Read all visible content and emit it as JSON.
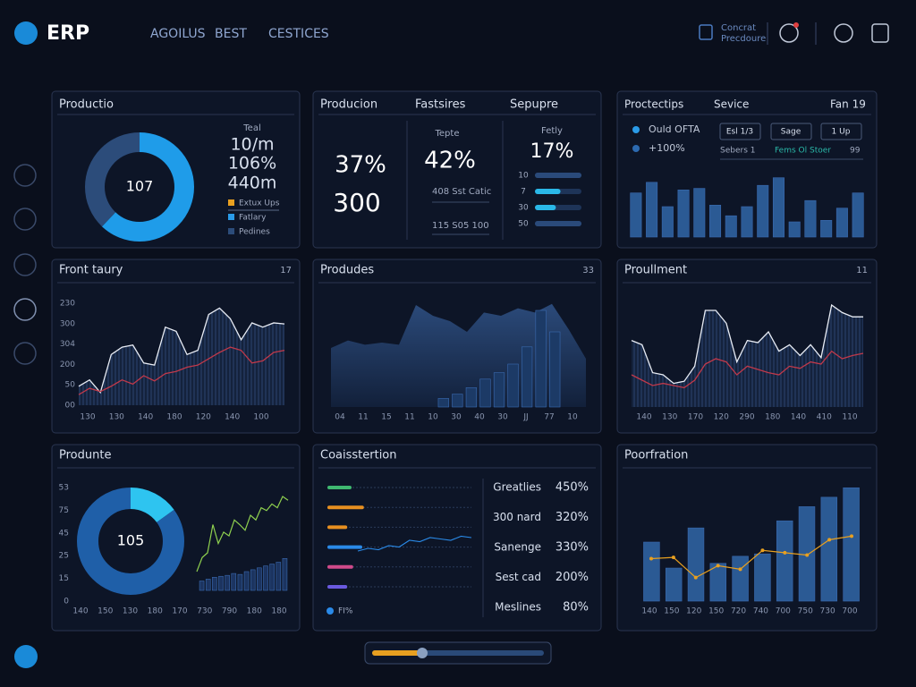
{
  "header": {
    "logo": "ERP",
    "nav": [
      "AGOILUS",
      "BEST",
      "CESTICES"
    ],
    "user": [
      "Concrat",
      "Precdoure"
    ]
  },
  "panels": [
    {
      "title": "Productio",
      "chart": {
        "type": "donut",
        "center": "107",
        "values": [
          62,
          38
        ],
        "colors": [
          "#1f9ce9",
          "#2c4c7a"
        ]
      },
      "stats_label": "Teal",
      "stats": [
        "10/m",
        "106%",
        "440m"
      ],
      "legend": [
        {
          "name": "Extux Ups",
          "color": "#e8a020"
        },
        {
          "name": "Fatlary",
          "color": "#2a9be8"
        },
        {
          "name": "Pedines",
          "color": "#2c4c7a"
        }
      ]
    },
    {
      "titles": [
        "Producion",
        "Fastsires",
        "Sepupre"
      ],
      "kpis": [
        "37%",
        "300"
      ],
      "mid": {
        "label": "Tepte",
        "value": "42%",
        "lines": [
          "408 Sst Catic",
          "115 S05 100"
        ]
      },
      "right": {
        "label": "Fetly",
        "value": "17%",
        "progress": {
          "labels": [
            "10",
            "7",
            "30",
            "50"
          ],
          "values": [
            100,
            55,
            45,
            100
          ],
          "xlim": [
            0,
            100
          ],
          "color": "#2ab8e8"
        }
      }
    },
    {
      "titles": [
        "Proctectips",
        "Sevice",
        "Fan 19"
      ],
      "legend": [
        {
          "name": "Ould OFTA",
          "color": "#2a9be8"
        },
        {
          "name": "+100%",
          "color": "#2c6ab0"
        }
      ],
      "buttons": [
        "Esl 1/3",
        "Sage",
        "1 Up"
      ],
      "row": [
        "Sebers 1",
        "Fems Ol Stoer",
        "99"
      ],
      "chart": {
        "type": "bar",
        "values": [
          58,
          72,
          40,
          62,
          64,
          42,
          28,
          40,
          68,
          78,
          20,
          48,
          22,
          38,
          58
        ],
        "ylim": [
          0,
          100
        ],
        "color": "#2b5a94"
      }
    },
    {
      "title": "Front taury",
      "badge": "17",
      "chart": {
        "type": "line",
        "y_labels": [
          "230",
          "300",
          "304",
          "200",
          "50",
          "00"
        ],
        "x_labels": [
          "130",
          "130",
          "140",
          "180",
          "120",
          "140",
          "100"
        ],
        "ylim": [
          0,
          100
        ],
        "series": [
          {
            "color": "#e8ecf4",
            "values": [
              18,
              24,
              12,
              48,
              55,
              57,
              40,
              38,
              74,
              70,
              48,
              52,
              86,
              92,
              82,
              62,
              78,
              74,
              78,
              77
            ]
          },
          {
            "color": "#c0394a",
            "values": [
              10,
              16,
              13,
              18,
              24,
              20,
              28,
              23,
              30,
              32,
              36,
              38,
              44,
              50,
              55,
              52,
              40,
              42,
              50,
              52
            ]
          }
        ]
      }
    },
    {
      "title": "Produdes",
      "badge": "33",
      "chart": {
        "type": "area",
        "x_labels": [
          "04",
          "11",
          "15",
          "11",
          "10",
          "30",
          "40",
          "30",
          "JJ",
          "77",
          "10"
        ],
        "ylim": [
          0,
          100
        ],
        "area_values": [
          55,
          62,
          58,
          60,
          58,
          95,
          85,
          80,
          70,
          88,
          85,
          92,
          88,
          96,
          72,
          45
        ],
        "bar_values": [
          8,
          12,
          18,
          26,
          32,
          40,
          56,
          90,
          70
        ],
        "color": "#2b4a78"
      }
    },
    {
      "title": "Proullment",
      "badge": "11",
      "chart": {
        "type": "line",
        "x_labels": [
          "140",
          "130",
          "170",
          "120",
          "290",
          "180",
          "140",
          "410",
          "110"
        ],
        "ylim": [
          0,
          100
        ],
        "series": [
          {
            "color": "#e8ecf4",
            "values": [
              62,
              58,
              32,
              30,
              22,
              24,
              38,
              90,
              90,
              78,
              42,
              62,
              60,
              70,
              52,
              58,
              48,
              58,
              46,
              95,
              88,
              84,
              84
            ]
          },
          {
            "color": "#c0394a",
            "values": [
              30,
              25,
              20,
              22,
              20,
              18,
              25,
              40,
              45,
              42,
              30,
              38,
              35,
              32,
              30,
              38,
              36,
              42,
              40,
              52,
              45,
              48,
              50
            ]
          }
        ]
      }
    },
    {
      "title": "Produnte",
      "chart": {
        "type": "donut",
        "center": "105",
        "values": [
          15,
          85
        ],
        "colors": [
          "#2ec4f0",
          "#1f5fa8"
        ],
        "y_labels": [
          "53",
          "75",
          "45",
          "25",
          "15",
          "0"
        ],
        "x_labels": [
          "140",
          "150",
          "130",
          "180",
          "170",
          "730",
          "790",
          "180",
          "180"
        ],
        "ylim": [
          0,
          100
        ],
        "bar_values": [
          10,
          12,
          14,
          15,
          16,
          18,
          17,
          20,
          22,
          24,
          26,
          28,
          30,
          34
        ],
        "line_values": [
          20,
          35,
          40,
          70,
          50,
          62,
          58,
          75,
          70,
          64,
          80,
          75,
          88,
          85,
          92,
          88,
          100,
          96
        ],
        "line_color": "#8fd14f"
      }
    },
    {
      "title": "Coaisstertion",
      "chart": {
        "type": "hbar",
        "xlim": [
          0,
          100
        ],
        "rows": [
          {
            "color": "#3fb870",
            "value": 45
          },
          {
            "color": "#e89020",
            "value": 68
          },
          {
            "color": "#e89020",
            "value": 37
          },
          {
            "color": "#2a8ae8",
            "value": 65
          },
          {
            "color": "#d04a8a",
            "value": 48
          },
          {
            "color": "#6a5ae0",
            "value": 37
          }
        ],
        "line_values": [
          20,
          30,
          25,
          40,
          35,
          60,
          55,
          70,
          65,
          60,
          75,
          70
        ],
        "ylim": [
          0,
          100
        ],
        "line_color": "#2a8ae8"
      },
      "legend": "FI%",
      "list": [
        {
          "name": "Greatlies",
          "value": "450%"
        },
        {
          "name": "300 nard",
          "value": "320%"
        },
        {
          "name": "Sanenge",
          "value": "330%"
        },
        {
          "name": "Sest cad",
          "value": "200%"
        },
        {
          "name": "Meslines",
          "value": "80%"
        }
      ]
    },
    {
      "title": "Poorfration",
      "chart": {
        "type": "bar",
        "x_labels": [
          "140",
          "150",
          "120",
          "150",
          "720",
          "740",
          "700",
          "750",
          "730",
          "700"
        ],
        "ylim": [
          0,
          100
        ],
        "values": [
          50,
          28,
          62,
          32,
          38,
          40,
          68,
          80,
          88,
          96
        ],
        "color": "#2b5a94",
        "line_values": [
          36,
          37,
          20,
          30,
          27,
          43,
          41,
          39,
          52,
          55
        ],
        "line_color": "#e8a020"
      }
    }
  ]
}
